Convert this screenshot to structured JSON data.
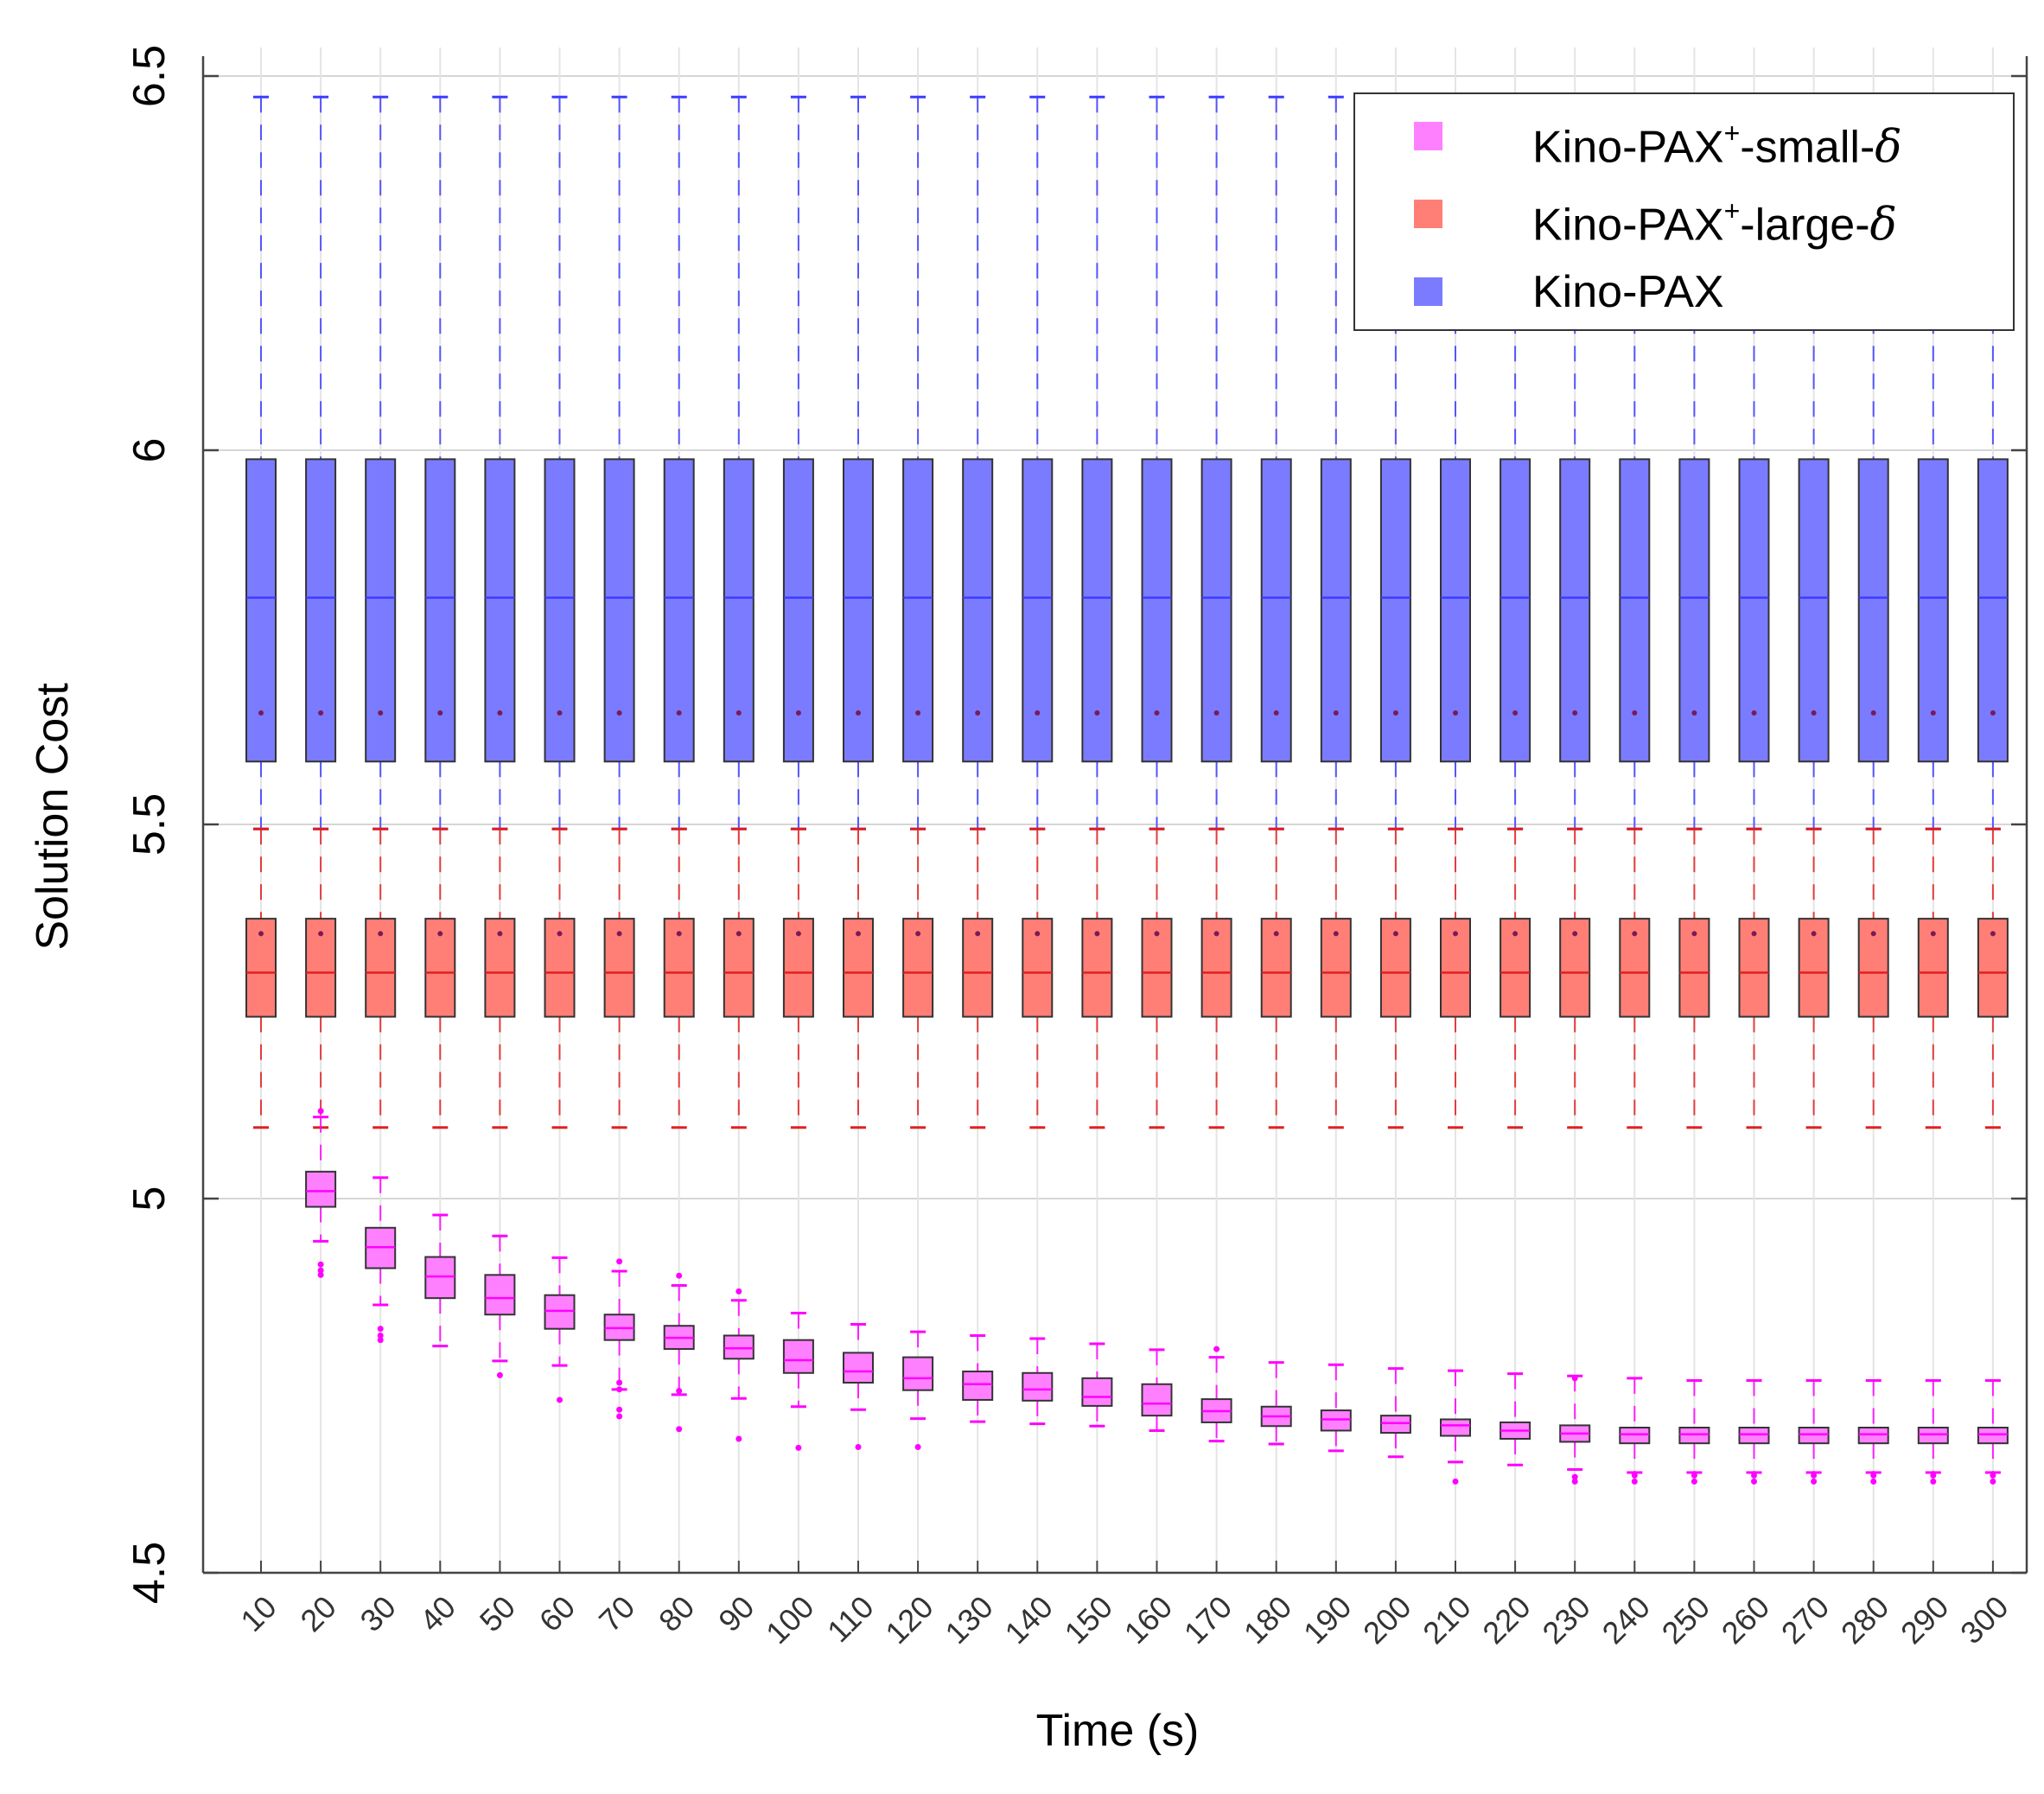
{
  "chart_data": {
    "type": "box",
    "xlabel": "Time (s)",
    "ylabel": "Solution Cost",
    "ylim": [
      4.5,
      6.5
    ],
    "yticks": [
      "4.5",
      "5",
      "5.5",
      "6",
      "6.5"
    ],
    "ytick_values": [
      4.5,
      5,
      5.5,
      6,
      6.5
    ],
    "categories": [
      "10",
      "20",
      "30",
      "40",
      "50",
      "60",
      "70",
      "80",
      "90",
      "100",
      "110",
      "120",
      "130",
      "140",
      "150",
      "160",
      "170",
      "180",
      "190",
      "200",
      "210",
      "220",
      "230",
      "240",
      "250",
      "260",
      "270",
      "280",
      "290",
      "300"
    ],
    "grid": true,
    "legend_position": "top-right",
    "series": [
      {
        "name": "Kino-PAX",
        "color": "#7b7bff",
        "line_color": "#3d3dff",
        "boxes": {
          "q1": [
            5.584,
            5.584,
            5.584,
            5.584,
            5.584,
            5.584,
            5.584,
            5.584,
            5.584,
            5.584,
            5.584,
            5.584,
            5.584,
            5.584,
            5.584,
            5.584,
            5.584,
            5.584,
            5.584,
            5.584,
            5.584,
            5.584,
            5.584,
            5.584,
            5.584,
            5.584,
            5.584,
            5.584,
            5.584,
            5.584
          ],
          "median": [
            5.803,
            5.803,
            5.803,
            5.803,
            5.803,
            5.803,
            5.803,
            5.803,
            5.803,
            5.803,
            5.803,
            5.803,
            5.803,
            5.803,
            5.803,
            5.803,
            5.803,
            5.803,
            5.803,
            5.803,
            5.803,
            5.803,
            5.803,
            5.803,
            5.803,
            5.803,
            5.803,
            5.803,
            5.803,
            5.803
          ],
          "q3": [
            5.988,
            5.988,
            5.988,
            5.988,
            5.988,
            5.988,
            5.988,
            5.988,
            5.988,
            5.988,
            5.988,
            5.988,
            5.988,
            5.988,
            5.988,
            5.988,
            5.988,
            5.988,
            5.988,
            5.988,
            5.988,
            5.988,
            5.988,
            5.988,
            5.988,
            5.988,
            5.988,
            5.988,
            5.988,
            5.988
          ],
          "whisker_low": [
            5.494,
            5.494,
            5.494,
            5.494,
            5.494,
            5.494,
            5.494,
            5.494,
            5.494,
            5.494,
            5.494,
            5.494,
            5.494,
            5.494,
            5.494,
            5.494,
            5.494,
            5.494,
            5.494,
            5.494,
            5.494,
            5.494,
            5.494,
            5.494,
            5.494,
            5.494,
            5.494,
            5.494,
            5.494,
            5.494
          ],
          "whisker_high": [
            6.472,
            6.472,
            6.472,
            6.472,
            6.472,
            6.472,
            6.472,
            6.472,
            6.472,
            6.472,
            6.472,
            6.472,
            6.472,
            6.472,
            6.472,
            6.472,
            6.472,
            6.472,
            6.472,
            6.472,
            6.472,
            6.472,
            6.472,
            6.472,
            6.472,
            6.472,
            6.472,
            6.472,
            6.472,
            6.472
          ],
          "mean": [
            5.649,
            5.649,
            5.649,
            5.649,
            5.649,
            5.649,
            5.649,
            5.649,
            5.649,
            5.649,
            5.649,
            5.649,
            5.649,
            5.649,
            5.649,
            5.649,
            5.649,
            5.649,
            5.649,
            5.649,
            5.649,
            5.649,
            5.649,
            5.649,
            5.649,
            5.649,
            5.649,
            5.649,
            5.649,
            5.649
          ]
        }
      },
      {
        "name": "Kino-PAX⁺-large-δ",
        "color": "#ff7f76",
        "line_color": "#e02020",
        "boxes": {
          "q1": [
            5.243,
            5.243,
            5.243,
            5.243,
            5.243,
            5.243,
            5.243,
            5.243,
            5.243,
            5.243,
            5.243,
            5.243,
            5.243,
            5.243,
            5.243,
            5.243,
            5.243,
            5.243,
            5.243,
            5.243,
            5.243,
            5.243,
            5.243,
            5.243,
            5.243,
            5.243,
            5.243,
            5.243,
            5.243,
            5.243
          ],
          "median": [
            5.302,
            5.302,
            5.302,
            5.302,
            5.302,
            5.302,
            5.302,
            5.302,
            5.302,
            5.302,
            5.302,
            5.302,
            5.302,
            5.302,
            5.302,
            5.302,
            5.302,
            5.302,
            5.302,
            5.302,
            5.302,
            5.302,
            5.302,
            5.302,
            5.302,
            5.302,
            5.302,
            5.302,
            5.302,
            5.302
          ],
          "q3": [
            5.374,
            5.374,
            5.374,
            5.374,
            5.374,
            5.374,
            5.374,
            5.374,
            5.374,
            5.374,
            5.374,
            5.374,
            5.374,
            5.374,
            5.374,
            5.374,
            5.374,
            5.374,
            5.374,
            5.374,
            5.374,
            5.374,
            5.374,
            5.374,
            5.374,
            5.374,
            5.374,
            5.374,
            5.374,
            5.374
          ],
          "whisker_low": [
            5.095,
            5.095,
            5.095,
            5.095,
            5.095,
            5.095,
            5.095,
            5.095,
            5.095,
            5.095,
            5.095,
            5.095,
            5.095,
            5.095,
            5.095,
            5.095,
            5.095,
            5.095,
            5.095,
            5.095,
            5.095,
            5.095,
            5.095,
            5.095,
            5.095,
            5.095,
            5.095,
            5.095,
            5.095,
            5.095
          ],
          "whisker_high": [
            5.494,
            5.494,
            5.494,
            5.494,
            5.494,
            5.494,
            5.494,
            5.494,
            5.494,
            5.494,
            5.494,
            5.494,
            5.494,
            5.494,
            5.494,
            5.494,
            5.494,
            5.494,
            5.494,
            5.494,
            5.494,
            5.494,
            5.494,
            5.494,
            5.494,
            5.494,
            5.494,
            5.494,
            5.494,
            5.494
          ],
          "mean": [
            5.354,
            5.354,
            5.354,
            5.354,
            5.354,
            5.354,
            5.354,
            5.354,
            5.354,
            5.354,
            5.354,
            5.354,
            5.354,
            5.354,
            5.354,
            5.354,
            5.354,
            5.354,
            5.354,
            5.354,
            5.354,
            5.354,
            5.354,
            5.354,
            5.354,
            5.354,
            5.354,
            5.354,
            5.354,
            5.354
          ]
        }
      },
      {
        "name": "Kino-PAX⁺-small-δ",
        "color": "#ff80ff",
        "line_color": "#ff00ff",
        "boxes": {
          "q1": [
            null,
            4.989,
            4.907,
            4.867,
            4.845,
            4.826,
            4.811,
            4.799,
            4.786,
            4.767,
            4.754,
            4.744,
            4.731,
            4.73,
            4.723,
            4.71,
            4.701,
            4.696,
            4.69,
            4.687,
            4.683,
            4.679,
            4.675,
            4.673,
            4.673,
            4.673,
            4.673,
            4.673,
            4.673,
            4.673
          ],
          "median": [
            null,
            5.01,
            4.935,
            4.896,
            4.867,
            4.85,
            4.827,
            4.814,
            4.8,
            4.784,
            4.769,
            4.76,
            4.752,
            4.745,
            4.735,
            4.726,
            4.716,
            4.709,
            4.705,
            4.7,
            4.697,
            4.69,
            4.686,
            4.685,
            4.685,
            4.685,
            4.685,
            4.685,
            4.685,
            4.685
          ],
          "q3": [
            null,
            5.036,
            4.961,
            4.922,
            4.898,
            4.871,
            4.845,
            4.83,
            4.817,
            4.811,
            4.794,
            4.788,
            4.769,
            4.767,
            4.76,
            4.752,
            4.732,
            4.722,
            4.717,
            4.71,
            4.705,
            4.701,
            4.697,
            4.694,
            4.694,
            4.694,
            4.694,
            4.694,
            4.694,
            4.694
          ],
          "whisker_low": [
            null,
            4.943,
            4.858,
            4.803,
            4.783,
            4.777,
            4.745,
            4.738,
            4.733,
            4.722,
            4.718,
            4.706,
            4.702,
            4.699,
            4.696,
            4.69,
            4.676,
            4.672,
            4.663,
            4.655,
            4.648,
            4.644,
            4.638,
            4.634,
            4.634,
            4.634,
            4.634,
            4.634,
            4.634,
            4.634
          ],
          "whisker_high": [
            null,
            5.109,
            5.028,
            4.978,
            4.95,
            4.921,
            4.903,
            4.884,
            4.864,
            4.847,
            4.832,
            4.822,
            4.817,
            4.813,
            4.806,
            4.798,
            4.788,
            4.781,
            4.778,
            4.773,
            4.77,
            4.766,
            4.763,
            4.76,
            4.757,
            4.757,
            4.757,
            4.757,
            4.757,
            4.757
          ],
          "outliers": [
            [],
            [
              5.117,
              4.912,
              4.904,
              4.898
            ],
            [
              4.826,
              4.817,
              4.811
            ],
            [],
            [
              4.764
            ],
            [
              4.731
            ],
            [
              4.916,
              4.754,
              4.745,
              4.718,
              4.709
            ],
            [
              4.897,
              4.743,
              4.692
            ],
            [
              4.876,
              4.679
            ],
            [
              4.667
            ],
            [
              4.668
            ],
            [
              4.668
            ],
            [],
            [],
            [],
            [],
            [
              4.799
            ],
            [],
            [],
            [],
            [
              4.622
            ],
            [],
            [
              4.76,
              4.628,
              4.622
            ],
            [
              4.63,
              4.622
            ],
            [
              4.63,
              4.622
            ],
            [
              4.63,
              4.622
            ],
            [
              4.63,
              4.622
            ],
            [
              4.63,
              4.622
            ],
            [
              4.63,
              4.622
            ],
            [
              4.63,
              4.622
            ]
          ]
        }
      }
    ]
  },
  "legend": {
    "items": [
      {
        "base": "Kino-PAX",
        "sup": "+",
        "suffix": "-small-",
        "delta": "δ",
        "color": "#ff80ff"
      },
      {
        "base": "Kino-PAX",
        "sup": "+",
        "suffix": "-large-",
        "delta": "δ",
        "color": "#ff7f76"
      },
      {
        "base": "Kino-PAX",
        "sup": "",
        "suffix": "",
        "delta": "",
        "color": "#7b7bff"
      }
    ]
  }
}
